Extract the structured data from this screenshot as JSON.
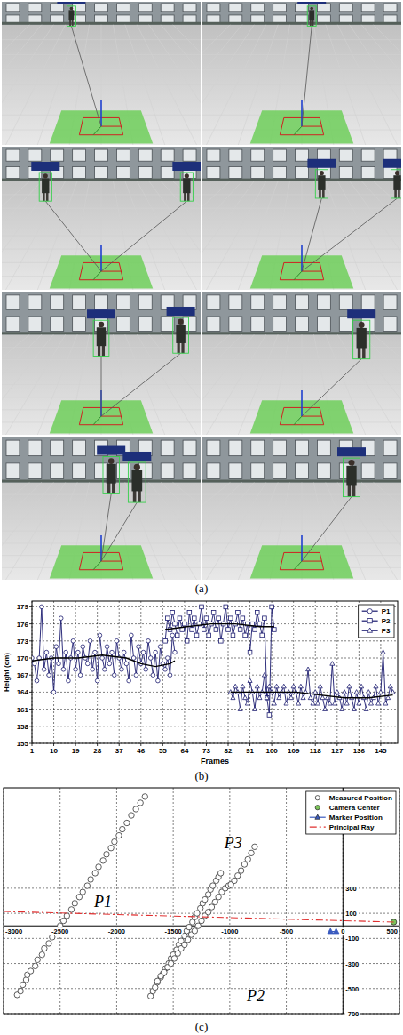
{
  "figure": {
    "captions": [
      "(a)",
      "(b)",
      "(c)"
    ]
  },
  "chart_data": [
    {
      "type": "line",
      "x_label": "Frames",
      "y_label": "Height (cm)",
      "xlim": [
        1,
        152
      ],
      "xticks": [
        1,
        10,
        19,
        28,
        37,
        46,
        55,
        64,
        73,
        82,
        91,
        100,
        109,
        118,
        127,
        136,
        145
      ],
      "ylim": [
        155,
        180
      ],
      "yticks": [
        155,
        158,
        161,
        164,
        167,
        170,
        173,
        176,
        179
      ],
      "grid": true,
      "legend": "upper right",
      "series": [
        {
          "name": "P1",
          "color": "#1a1a6e",
          "marker": "circle",
          "line_style": "solid",
          "x": [
            1,
            2,
            3,
            4,
            5,
            6,
            7,
            8,
            9,
            10,
            11,
            12,
            13,
            14,
            15,
            16,
            17,
            18,
            19,
            20,
            21,
            22,
            23,
            24,
            25,
            26,
            27,
            28,
            29,
            30,
            31,
            32,
            33,
            34,
            35,
            36,
            37,
            38,
            39,
            40,
            41,
            42,
            43,
            44,
            45,
            46,
            47,
            48,
            49,
            50,
            51,
            52,
            53,
            54,
            55,
            56,
            57,
            58,
            59,
            60
          ],
          "values": [
            170,
            169,
            166,
            170,
            179,
            168,
            171,
            167,
            170,
            164,
            172,
            169,
            177,
            168,
            171,
            166,
            170,
            173,
            168,
            171,
            167,
            172,
            170,
            169,
            173,
            168,
            171,
            166,
            174,
            170,
            168,
            172,
            169,
            171,
            167,
            173,
            170,
            168,
            171,
            169,
            166,
            174,
            170,
            167,
            172,
            169,
            171,
            168,
            173,
            170,
            167,
            171,
            166,
            172,
            169,
            168,
            170,
            167,
            174,
            171
          ],
          "trend": {
            "x": [
              1,
              10,
              20,
              30,
              40,
              46,
              52,
              58,
              60
            ],
            "values": [
              169.5,
              170,
              170,
              170.5,
              170,
              169,
              168.5,
              169,
              169.5
            ]
          }
        },
        {
          "name": "P2",
          "color": "#1a1a6e",
          "marker": "square",
          "line_style": "solid",
          "x": [
            56,
            57,
            58,
            59,
            60,
            61,
            62,
            63,
            64,
            65,
            66,
            67,
            68,
            69,
            70,
            71,
            72,
            73,
            74,
            75,
            76,
            77,
            78,
            79,
            80,
            81,
            82,
            83,
            84,
            85,
            86,
            87,
            88,
            89,
            90,
            91,
            92,
            93,
            94,
            95,
            96,
            97,
            98,
            99,
            100,
            101
          ],
          "values": [
            173,
            177,
            175,
            178,
            176,
            174,
            177,
            175,
            176,
            173,
            178,
            175,
            177,
            174,
            176,
            179,
            175,
            177,
            174,
            176,
            178,
            175,
            177,
            173,
            176,
            179,
            175,
            177,
            174,
            176,
            178,
            175,
            177,
            174,
            176,
            171,
            176,
            175,
            178,
            176,
            174,
            177,
            163,
            160,
            179,
            175
          ],
          "trend": {
            "x": [
              56,
              65,
              75,
              85,
              95,
              101
            ],
            "values": [
              175,
              175.5,
              176,
              176,
              175.5,
              175.5
            ]
          }
        },
        {
          "name": "P3",
          "color": "#1a1a6e",
          "marker": "triangle",
          "line_style": "solid",
          "x": [
            83,
            84,
            85,
            86,
            87,
            88,
            89,
            90,
            91,
            92,
            93,
            94,
            95,
            96,
            97,
            98,
            99,
            100,
            101,
            102,
            103,
            104,
            105,
            106,
            107,
            108,
            109,
            110,
            111,
            112,
            113,
            114,
            115,
            116,
            117,
            118,
            119,
            120,
            121,
            122,
            123,
            124,
            125,
            126,
            127,
            128,
            129,
            130,
            131,
            132,
            133,
            134,
            135,
            136,
            137,
            138,
            139,
            140,
            141,
            142,
            143,
            144,
            145,
            146,
            147,
            148,
            149,
            150
          ],
          "values": [
            164,
            163,
            165,
            164,
            161,
            165,
            163,
            162,
            166,
            164,
            161,
            165,
            163,
            164,
            167,
            163,
            165,
            164,
            162,
            165,
            163,
            164,
            165,
            162,
            164,
            163,
            165,
            164,
            162,
            165,
            163,
            164,
            168,
            163,
            162,
            164,
            162,
            165,
            163,
            161,
            163,
            162,
            169,
            162,
            164,
            163,
            161,
            164,
            162,
            165,
            163,
            161,
            164,
            162,
            165,
            163,
            161,
            164,
            162,
            163,
            165,
            162,
            164,
            171,
            162,
            163,
            165,
            164
          ],
          "trend": {
            "x": [
              83,
              95,
              110,
              120,
              130,
              140,
              150
            ],
            "values": [
              164,
              164,
              164,
              163.5,
              163,
              163,
              163.5
            ]
          }
        }
      ]
    },
    {
      "type": "scatter",
      "xlim": [
        -3000,
        500
      ],
      "xticks": [
        -3000,
        -2500,
        -2000,
        -1500,
        -1000,
        -500,
        0,
        500
      ],
      "ylim": [
        -700,
        1100
      ],
      "yticks": [
        -700,
        -500,
        -300,
        -100,
        100,
        300
      ],
      "grid": true,
      "legend": "upper right",
      "series": [
        {
          "name": "Measured Position",
          "type": "scatter",
          "color": "#ffffff",
          "marker": "circle",
          "x": [
            -2880,
            -2850,
            -2830,
            -2800,
            -2790,
            -2760,
            -2720,
            -2700,
            -2660,
            -2640,
            -2600,
            -2570,
            -2540,
            -2500,
            -2470,
            -2440,
            -2400,
            -2370,
            -2330,
            -2300,
            -2260,
            -2230,
            -2190,
            -2160,
            -2120,
            -2090,
            -2050,
            -2020,
            -1980,
            -1950,
            -1910,
            -1870,
            -1830,
            -1790,
            -1750,
            -1700,
            -1680,
            -1660,
            -1640,
            -1610,
            -1590,
            -1570,
            -1540,
            -1520,
            -1500,
            -1470,
            -1450,
            -1430,
            -1400,
            -1380,
            -1360,
            -1330,
            -1310,
            -1290,
            -1260,
            -1240,
            -1220,
            -1190,
            -1170,
            -1150,
            -1120,
            -1100,
            -1080,
            -1640,
            -1610,
            -1580,
            -1550,
            -1520,
            -1490,
            -1460,
            -1430,
            -1400,
            -1370,
            -1340,
            -1310,
            -1280,
            -1250,
            -1220,
            -1190,
            -1160,
            -1130,
            -1100,
            -1070,
            -1040,
            -1010,
            -990,
            -960,
            -930,
            -900,
            -870,
            -840,
            -810,
            -780
          ],
          "values": [
            -550,
            -520,
            -470,
            -430,
            -390,
            -360,
            -320,
            -270,
            -230,
            -180,
            -140,
            -90,
            -50,
            0,
            40,
            80,
            130,
            180,
            230,
            270,
            320,
            370,
            420,
            470,
            520,
            570,
            620,
            670,
            720,
            770,
            820,
            880,
            930,
            980,
            1030,
            -560,
            -520,
            -490,
            -450,
            -410,
            -380,
            -340,
            -300,
            -260,
            -230,
            -190,
            -150,
            -120,
            -80,
            -40,
            -10,
            30,
            70,
            100,
            140,
            180,
            210,
            250,
            290,
            320,
            360,
            390,
            420,
            -440,
            -400,
            -370,
            -330,
            -300,
            -260,
            -220,
            -180,
            -150,
            -110,
            -70,
            -40,
            0,
            40,
            80,
            110,
            150,
            190,
            230,
            270,
            300,
            320,
            330,
            360,
            400,
            440,
            490,
            530,
            580,
            630
          ]
        },
        {
          "name": "Camera Center",
          "type": "scatter",
          "color": "#7cc45a",
          "marker": "circle",
          "x": [
            450
          ],
          "values": [
            30
          ]
        },
        {
          "name": "Marker Position",
          "type": "line",
          "color": "#3a5bbf",
          "marker": "triangle",
          "line_style": "solid",
          "x": [
            -110,
            -60
          ],
          "values": [
            -45,
            -45
          ]
        },
        {
          "name": "Principal Ray",
          "type": "line",
          "color": "#e03030",
          "line_style": "dashdot",
          "x": [
            -3000,
            450
          ],
          "values": [
            115,
            30
          ]
        }
      ],
      "annotations": [
        {
          "text": "P1",
          "x": -2200,
          "y": 150
        },
        {
          "text": "P3",
          "x": -1048,
          "y": 620
        },
        {
          "text": "P2",
          "x": -850,
          "y": -600
        }
      ]
    }
  ]
}
